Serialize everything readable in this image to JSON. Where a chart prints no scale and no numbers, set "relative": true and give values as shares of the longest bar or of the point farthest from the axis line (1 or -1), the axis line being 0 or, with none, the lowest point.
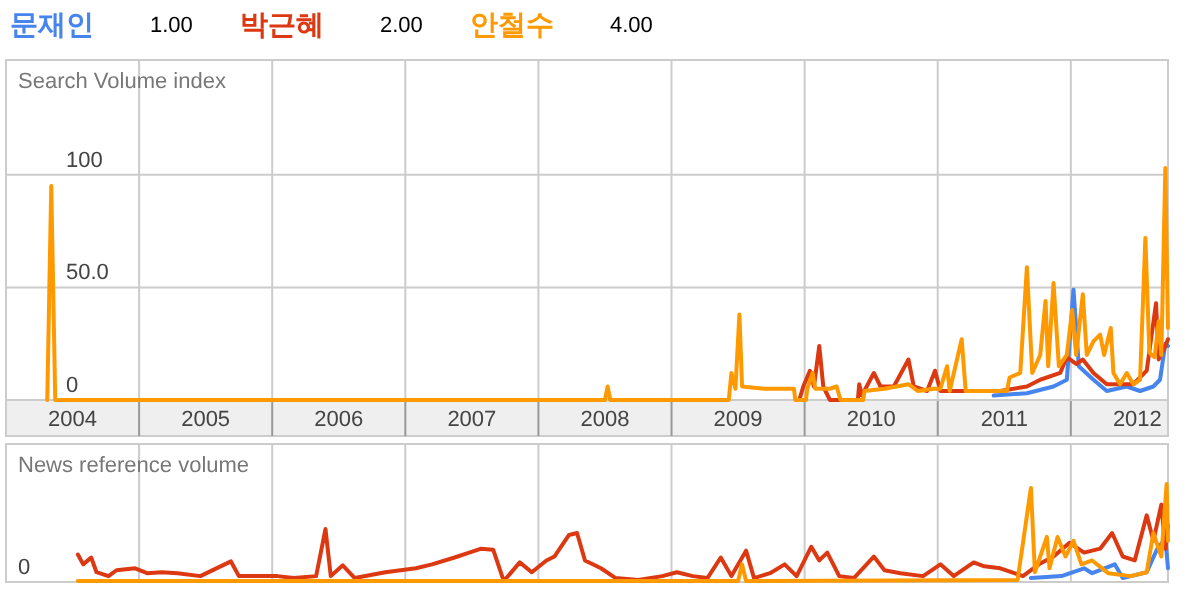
{
  "chart_data": [
    {
      "type": "line",
      "ylabel": "Search Volume index",
      "legend": "top left",
      "grid": true,
      "annotations": [
        "1.00",
        "2.00",
        "4.00"
      ],
      "xlim": [
        2004,
        2012.73
      ],
      "ylim": [
        0,
        151
      ],
      "xticks": [
        {
          "value": 2005,
          "label": null
        },
        {
          "value": 2006,
          "label": null
        },
        {
          "value": 2007,
          "label": null
        },
        {
          "value": 2008,
          "label": null
        },
        {
          "value": 2009,
          "label": null
        },
        {
          "value": 2010,
          "label": null
        },
        {
          "value": 2011,
          "label": null
        },
        {
          "value": 2012,
          "label": null
        },
        {
          "value": 2004.5,
          "label": "2004"
        },
        {
          "value": 2005.5,
          "label": "2005"
        },
        {
          "value": 2006.5,
          "label": "2006"
        },
        {
          "value": 2007.5,
          "label": "2007"
        },
        {
          "value": 2008.5,
          "label": "2008"
        },
        {
          "value": 2009.5,
          "label": "2009"
        },
        {
          "value": 2010.5,
          "label": "2010"
        },
        {
          "value": 2011.5,
          "label": "2011"
        },
        {
          "value": 2012.5,
          "label": "2012"
        }
      ],
      "yticks": [
        0,
        {
          "value": 50,
          "label": "50.0"
        },
        100
      ],
      "series": [
        {
          "name": "문재인",
          "color": "#4684ee",
          "x": [
            2011.42,
            2011.67,
            2011.87,
            2011.97,
            2012.02,
            2012.06,
            2012.17,
            2012.27,
            2012.42,
            2012.52,
            2012.62,
            2012.67,
            2012.71,
            2012.73
          ],
          "values": [
            2,
            3,
            6,
            9,
            49,
            15,
            9,
            4,
            6,
            4,
            6,
            9,
            25,
            24
          ]
        },
        {
          "name": "박근혜",
          "color": "#dc3912",
          "x": [
            2009.96,
            2009.99,
            2010.04,
            2010.07,
            2010.11,
            2010.14,
            2010.19,
            2010.4,
            2010.41,
            2010.43,
            2010.52,
            2010.57,
            2010.67,
            2010.78,
            2010.82,
            2010.92,
            2010.98,
            2011.02,
            2011.17,
            2011.47,
            2011.67,
            2011.77,
            2011.92,
            2011.97,
            2012.04,
            2012.09,
            2012.17,
            2012.27,
            2012.47,
            2012.57,
            2012.64,
            2012.66,
            2012.71,
            2012.73
          ],
          "values": [
            0,
            6,
            13,
            6,
            24,
            6,
            0,
            0,
            7,
            2,
            12,
            6,
            6,
            18,
            6,
            4,
            13,
            4,
            4,
            4,
            6,
            9,
            12,
            19,
            16,
            18,
            12,
            7,
            7,
            13,
            43,
            18,
            24,
            27
          ]
        },
        {
          "name": "안철수",
          "color": "#ff9900",
          "x": [
            2004.31,
            2004.34,
            2004.37,
            2008.5,
            2008.52,
            2008.54,
            2009.43,
            2009.45,
            2009.48,
            2009.51,
            2009.53,
            2009.7,
            2009.92,
            2009.93,
            2010.01,
            2010.02,
            2010.06,
            2010.08,
            2010.19,
            2010.24,
            2010.27,
            2010.44,
            2010.45,
            2010.6,
            2010.78,
            2010.85,
            2010.97,
            2011.02,
            2011.07,
            2011.09,
            2011.18,
            2011.21,
            2011.52,
            2011.54,
            2011.62,
            2011.67,
            2011.71,
            2011.77,
            2011.81,
            2011.83,
            2011.87,
            2011.91,
            2011.97,
            2012.01,
            2012.04,
            2012.09,
            2012.12,
            2012.17,
            2012.22,
            2012.25,
            2012.3,
            2012.32,
            2012.37,
            2012.42,
            2012.47,
            2012.52,
            2012.56,
            2012.59,
            2012.63,
            2012.66,
            2012.68,
            2012.71,
            2012.73
          ],
          "values": [
            0,
            95,
            0,
            0,
            6,
            0,
            0,
            12,
            5,
            38,
            6,
            5,
            5,
            0,
            0,
            5,
            12,
            5,
            5,
            6,
            0,
            0,
            4,
            5,
            7,
            4,
            5,
            5,
            15,
            4,
            27,
            4,
            4,
            10,
            12,
            59,
            12,
            20,
            44,
            15,
            52,
            15,
            20,
            40,
            20,
            47,
            20,
            26,
            29,
            20,
            32,
            12,
            7,
            12,
            7,
            9,
            72,
            21,
            19,
            35,
            20,
            103,
            32
          ]
        }
      ]
    },
    {
      "type": "line",
      "ylabel": "News reference volume",
      "relative": true,
      "grid": "x",
      "tick_labels": false,
      "annotations": [
        "0"
      ],
      "xlim": [
        2004,
        2012.73
      ],
      "xticks": [
        {
          "value": 2005,
          "label": null
        },
        {
          "value": 2006,
          "label": null
        },
        {
          "value": 2007,
          "label": null
        },
        {
          "value": 2008,
          "label": null
        },
        {
          "value": 2009,
          "label": null
        },
        {
          "value": 2010,
          "label": null
        },
        {
          "value": 2011,
          "label": null
        },
        {
          "value": 2012,
          "label": null
        }
      ],
      "series": [
        {
          "color": "#4684ee",
          "x": [
            2011.7,
            2011.93,
            2012.1,
            2012.16,
            2012.33,
            2012.39,
            2012.57,
            2012.65,
            2012.71,
            2012.73
          ],
          "values": [
            0.04,
            0.06,
            0.14,
            0.09,
            0.18,
            0.04,
            0.1,
            0.34,
            0.44,
            0.14
          ]
        },
        {
          "color": "#dc3912",
          "x": [
            2004.54,
            2004.58,
            2004.64,
            2004.68,
            2004.77,
            2004.83,
            2004.97,
            2005.06,
            2005.17,
            2005.29,
            2005.46,
            2005.69,
            2005.75,
            2005.92,
            2006.04,
            2006.16,
            2006.33,
            2006.4,
            2006.44,
            2006.53,
            2006.62,
            2006.85,
            2007.08,
            2007.2,
            2007.37,
            2007.48,
            2007.57,
            2007.66,
            2007.74,
            2007.86,
            2007.95,
            2008.06,
            2008.12,
            2008.23,
            2008.29,
            2008.35,
            2008.47,
            2008.58,
            2008.75,
            2008.93,
            2009.04,
            2009.16,
            2009.27,
            2009.37,
            2009.45,
            2009.56,
            2009.62,
            2009.74,
            2009.85,
            2009.94,
            2010.05,
            2010.11,
            2010.17,
            2010.26,
            2010.37,
            2010.52,
            2010.6,
            2010.72,
            2010.89,
            2011.02,
            2011.12,
            2011.27,
            2011.35,
            2011.47,
            2011.64,
            2011.76,
            2011.87,
            2011.99,
            2012.1,
            2012.22,
            2012.31,
            2012.39,
            2012.48,
            2012.57,
            2012.62,
            2012.68,
            2012.71,
            2012.73
          ],
          "values": [
            0.28,
            0.18,
            0.25,
            0.1,
            0.06,
            0.12,
            0.14,
            0.09,
            0.1,
            0.09,
            0.06,
            0.21,
            0.06,
            0.06,
            0.06,
            0.04,
            0.06,
            0.54,
            0.06,
            0.17,
            0.04,
            0.1,
            0.14,
            0.18,
            0.25,
            0.3,
            0.34,
            0.33,
            0.01,
            0.2,
            0.1,
            0.22,
            0.26,
            0.48,
            0.5,
            0.22,
            0.14,
            0.04,
            0.02,
            0.06,
            0.1,
            0.06,
            0.04,
            0.25,
            0.06,
            0.32,
            0.04,
            0.09,
            0.18,
            0.06,
            0.36,
            0.22,
            0.3,
            0.06,
            0.04,
            0.26,
            0.12,
            0.09,
            0.06,
            0.18,
            0.06,
            0.2,
            0.16,
            0.14,
            0.06,
            0.18,
            0.26,
            0.4,
            0.3,
            0.34,
            0.5,
            0.26,
            0.22,
            0.68,
            0.42,
            0.79,
            0.34,
            0.58
          ]
        },
        {
          "color": "#ff9900",
          "x": [
            2004.54,
            2009.5,
            2009.53,
            2009.56,
            2011.6,
            2011.7,
            2011.73,
            2011.82,
            2011.84,
            2011.9,
            2011.96,
            2012.02,
            2012.08,
            2012.16,
            2012.28,
            2012.45,
            2012.57,
            2012.62,
            2012.68,
            2012.72,
            2012.73
          ],
          "values": [
            0.01,
            0.01,
            0.18,
            0.01,
            0.02,
            0.96,
            0.1,
            0.46,
            0.14,
            0.46,
            0.26,
            0.42,
            0.18,
            0.22,
            0.09,
            0.06,
            0.1,
            0.5,
            0.26,
            1,
            0.42
          ]
        }
      ]
    }
  ]
}
